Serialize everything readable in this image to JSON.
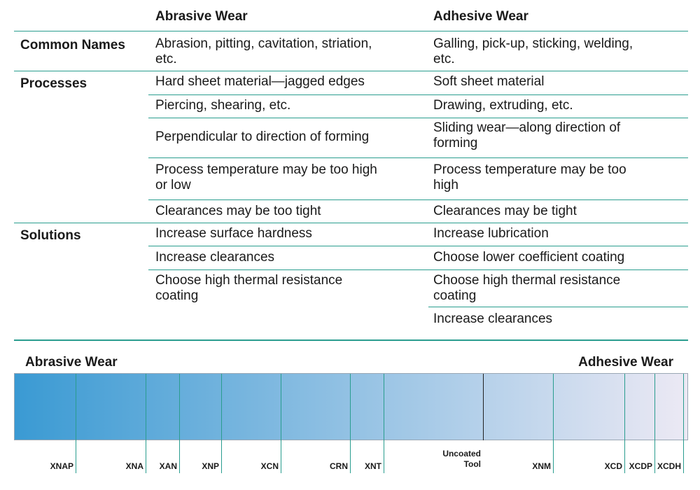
{
  "table": {
    "col_headers": [
      "Abrasive Wear",
      "Adhesive Wear"
    ],
    "row_labels": [
      "Common Names",
      "Processes",
      "Solutions"
    ],
    "common_names": {
      "abrasive": [
        "Abrasion, pitting, cavitation, striation,",
        "etc."
      ],
      "adhesive": [
        "Galling, pick-up, sticking, welding,",
        "etc."
      ]
    },
    "processes": [
      {
        "abrasive": [
          "Hard sheet material—jagged edges"
        ],
        "adhesive": [
          "Soft sheet material"
        ]
      },
      {
        "abrasive": [
          "Piercing, shearing, etc."
        ],
        "adhesive": [
          "Drawing, extruding, etc."
        ]
      },
      {
        "abrasive": [
          "Perpendicular to direction of forming"
        ],
        "adhesive": [
          "Sliding wear—along direction of",
          "forming"
        ]
      },
      {
        "abrasive": [
          "Process temperature may be too high",
          "or low"
        ],
        "adhesive": [
          "Process temperature may be too",
          "high"
        ]
      },
      {
        "abrasive": [
          "Clearances may be too tight"
        ],
        "adhesive": [
          "Clearances may be tight"
        ]
      }
    ],
    "solutions": [
      {
        "abrasive": [
          "Increase surface hardness"
        ],
        "adhesive": [
          "Increase lubrication"
        ]
      },
      {
        "abrasive": [
          "Increase clearances"
        ],
        "adhesive": [
          "Choose lower coefficient coating"
        ]
      },
      {
        "abrasive": [
          "Choose high thermal resistance",
          "coating"
        ],
        "adhesive": [
          "Choose high thermal resistance",
          "coating"
        ]
      },
      {
        "abrasive": [],
        "adhesive": [
          "Increase clearances"
        ]
      }
    ]
  },
  "scale": {
    "left_label": "Abrasive Wear",
    "right_label": "Adhesive Wear",
    "gradient_start": "#3a9ad3",
    "gradient_end": "#ece9f4",
    "accent": "#2a9d8f",
    "markers": [
      {
        "label": "XNAP"
      },
      {
        "label": "XNA"
      },
      {
        "label": "XAN"
      },
      {
        "label": "XNP"
      },
      {
        "label": "XCN"
      },
      {
        "label": "CRN"
      },
      {
        "label": "XNT"
      },
      {
        "label": "Uncoated Tool",
        "lines": [
          "Uncoated",
          "Tool"
        ]
      },
      {
        "label": "XNM"
      },
      {
        "label": "XCD"
      },
      {
        "label": "XCDP"
      },
      {
        "label": "XCDH"
      }
    ]
  }
}
